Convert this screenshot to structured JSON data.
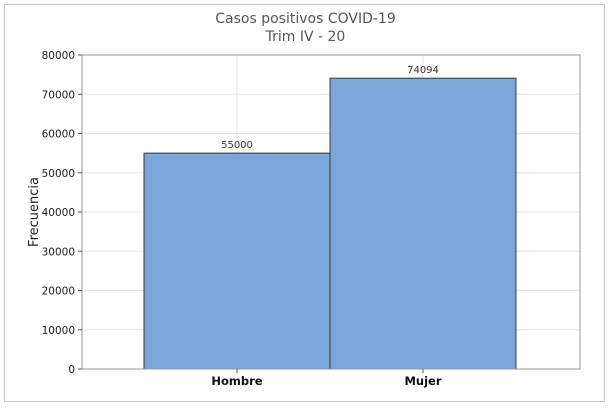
{
  "chart_data": {
    "type": "bar",
    "title": "Casos positivos COVID-19",
    "subtitle": "Trim IV - 20",
    "xlabel": "",
    "ylabel": "Frecuencia",
    "categories": [
      "Hombre",
      "Mujer"
    ],
    "values": [
      55000,
      74094
    ],
    "data_labels": [
      "55000",
      "74094"
    ],
    "ylim": [
      0,
      80000
    ],
    "yticks": [
      0,
      10000,
      20000,
      30000,
      40000,
      50000,
      60000,
      70000,
      80000
    ],
    "grid": true,
    "legend": "none",
    "colors": {
      "bar_fill": "#7ba6d9",
      "bar_stroke": "#3a3a3a",
      "grid": "#e3e3e3",
      "plot_border": "#9a9a9a"
    }
  }
}
